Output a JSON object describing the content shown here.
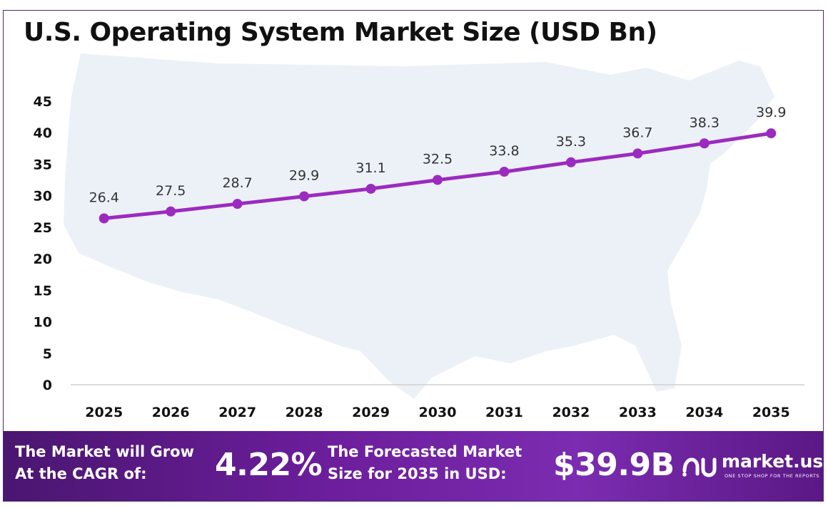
{
  "header": {
    "title": "U.S. Operating System Market Size (USD Bn)"
  },
  "chart_data": {
    "type": "line",
    "title": "U.S. Operating System Market Size (USD Bn)",
    "categories": [
      "2025",
      "2026",
      "2027",
      "2028",
      "2029",
      "2030",
      "2031",
      "2032",
      "2033",
      "2034",
      "2035"
    ],
    "series": [
      {
        "values": [
          26.4,
          27.5,
          28.7,
          29.9,
          31.1,
          32.5,
          33.8,
          35.3,
          36.7,
          38.3,
          39.9
        ]
      }
    ],
    "data_labels": [
      "26.4",
      "27.5",
      "28.7",
      "29.9",
      "31.1",
      "32.5",
      "33.8",
      "35.3",
      "36.7",
      "38.3",
      "39.9"
    ],
    "y_ticks": [
      "0",
      "5",
      "10",
      "15",
      "20",
      "25",
      "30",
      "35",
      "40",
      "45"
    ],
    "ylim": [
      0,
      45
    ],
    "grid": false,
    "line_color": "#9b2bbf",
    "background_shape": "us-map"
  },
  "footer": {
    "cagr_label_line1": "The Market will Grow",
    "cagr_label_line2": "At the CAGR of:",
    "cagr_value": "4.22%",
    "forecast_label_line1": "The Forecasted Market",
    "forecast_label_line2": "Size for 2035 in USD:",
    "forecast_value": "$39.9B",
    "logo_name": "market.us",
    "logo_tagline": "ONE STOP SHOP FOR THE REPORTS"
  }
}
